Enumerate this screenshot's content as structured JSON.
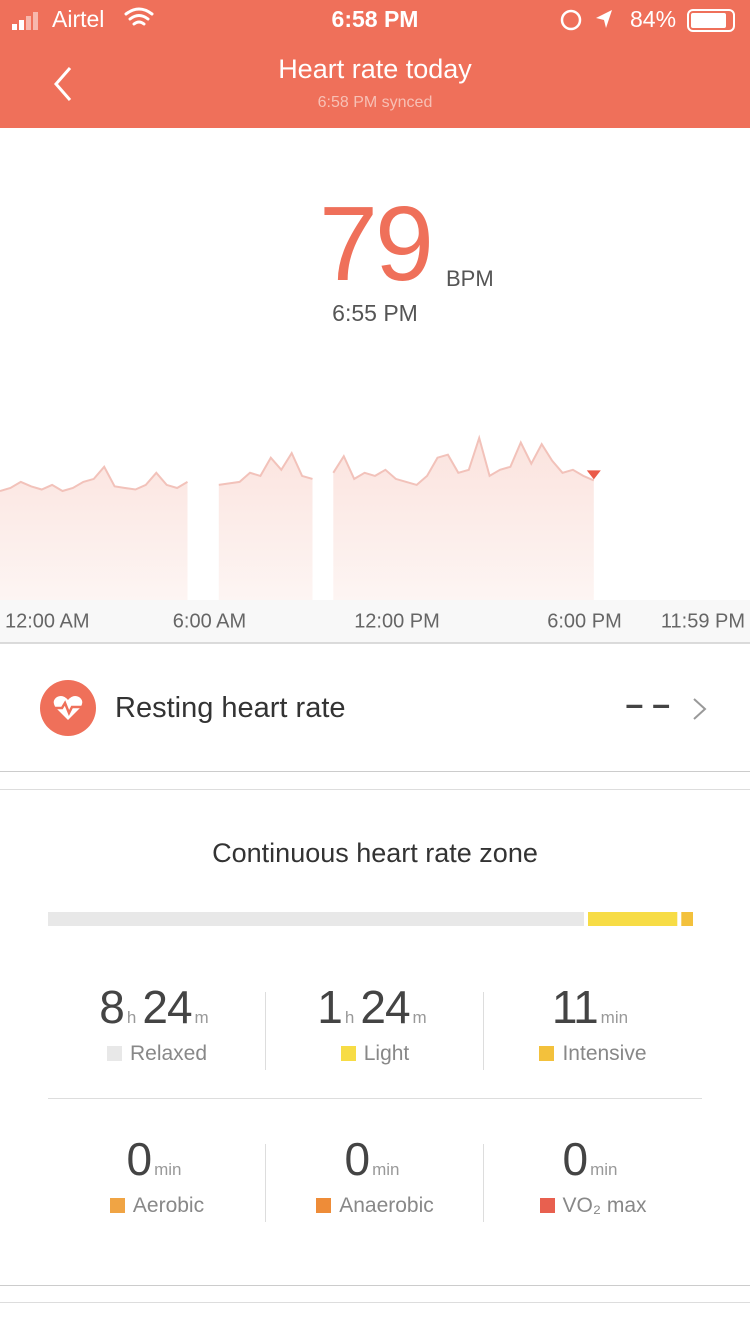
{
  "status_bar": {
    "carrier": "Airtel",
    "time": "6:58 PM",
    "battery": "84%"
  },
  "header": {
    "title": "Heart rate today",
    "subtitle": "6:58 PM synced"
  },
  "current": {
    "value": "79",
    "unit": "BPM",
    "time": "6:55 PM"
  },
  "chart_data": {
    "type": "line",
    "color": "#f2c2ba",
    "marker_color": "#ea5a48",
    "x": [
      0,
      20,
      40,
      60,
      80,
      100,
      120,
      140,
      160,
      180,
      200,
      220,
      240,
      260,
      280,
      300,
      320,
      340,
      360,
      380,
      400,
      420,
      440,
      460,
      480,
      500,
      520,
      540,
      560,
      580,
      600,
      620,
      640,
      660,
      680,
      700,
      720,
      740,
      760,
      780,
      800,
      820,
      840,
      860,
      880,
      900,
      920,
      940,
      960,
      980,
      1000,
      1020,
      1040,
      1060,
      1080,
      1100,
      1120,
      1140
    ],
    "series": [
      {
        "values": [
          72,
          74,
          78,
          75,
          73,
          76,
          72,
          74,
          78,
          80,
          88,
          75,
          74,
          73,
          76,
          84,
          76,
          74,
          78,
          null,
          null,
          76,
          77,
          78,
          84,
          82,
          94,
          86,
          97,
          82,
          80,
          null,
          84,
          95,
          80,
          84,
          82,
          86,
          80,
          78,
          76,
          82,
          94,
          96,
          84,
          86,
          107,
          82,
          86,
          88,
          104,
          90,
          103,
          92,
          84,
          86,
          82,
          79
        ]
      }
    ],
    "xlim": [
      0,
      1440
    ],
    "xticks": [
      {
        "value": 0,
        "label": "12:00 AM"
      },
      {
        "value": 360,
        "label": "6:00 AM"
      },
      {
        "value": 720,
        "label": "12:00 PM"
      },
      {
        "value": 1080,
        "label": "6:00 PM"
      },
      {
        "value": 1439,
        "label": "11:59 PM"
      }
    ]
  },
  "resting": {
    "label": "Resting heart rate",
    "value": "– –"
  },
  "zones_section": {
    "title": "Continuous heart rate zone",
    "zones": [
      {
        "label": "Relaxed",
        "color": "#e8e8e8",
        "parts": [
          {
            "value": 8,
            "unit": "h"
          },
          {
            "value": 24,
            "unit": "m"
          }
        ]
      },
      {
        "label": "Light",
        "color": "#f7dc45",
        "parts": [
          {
            "value": 1,
            "unit": "h"
          },
          {
            "value": 24,
            "unit": "m"
          }
        ]
      },
      {
        "label": "Intensive",
        "color": "#f3c13c",
        "parts": [
          {
            "value": 11,
            "unit": "min"
          }
        ]
      },
      {
        "label": "Aerobic",
        "color": "#f0a444",
        "parts": [
          {
            "value": 0,
            "unit": "min"
          }
        ]
      },
      {
        "label": "Anaerobic",
        "color": "#ee8c38",
        "parts": [
          {
            "value": 0,
            "unit": "min"
          }
        ]
      },
      {
        "label": "VO₂ max",
        "color": "#e8604f",
        "parts": [
          {
            "value": 0,
            "unit": "min"
          }
        ]
      }
    ]
  }
}
